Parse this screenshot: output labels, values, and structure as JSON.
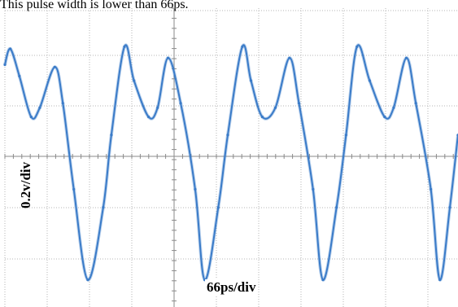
{
  "caption": "This pulse width is lower than 66ps.",
  "chart_data": {
    "type": "line",
    "ylabel": "0.2v/div",
    "xlabel": "66ps/div",
    "xlim": [
      0,
      10
    ],
    "ylim": [
      -3.2,
      3.4
    ],
    "grid": true,
    "line_color": "#3a7bc8",
    "series": [
      {
        "x": [
          0,
          0.12,
          0.32,
          0.58,
          0.77,
          1.1,
          1.28,
          1.52,
          1.83,
          2.17,
          2.35,
          2.64,
          2.85,
          3.17,
          3.37,
          3.6,
          3.88,
          4.2,
          4.41,
          4.71,
          4.92,
          5.24,
          5.43,
          5.68,
          5.97,
          6.28,
          6.49,
          6.8,
          7.02,
          7.32,
          7.53,
          7.77,
          8.05,
          8.38,
          8.58,
          8.86,
          9.07,
          9.4,
          9.6,
          9.82,
          10.0
        ],
        "y": [
          2.15,
          2.5,
          1.9,
          1.0,
          1.2,
          2.1,
          1.3,
          -0.6,
          -2.6,
          -1.0,
          0.6,
          2.55,
          1.8,
          1.0,
          1.2,
          2.3,
          1.3,
          -0.6,
          -2.6,
          -1.0,
          0.6,
          2.55,
          1.8,
          1.0,
          1.2,
          2.3,
          1.3,
          -0.6,
          -2.6,
          -1.0,
          0.6,
          2.55,
          1.8,
          1.0,
          1.2,
          2.3,
          1.3,
          -0.6,
          -2.6,
          -1.0,
          0.6
        ]
      }
    ]
  }
}
